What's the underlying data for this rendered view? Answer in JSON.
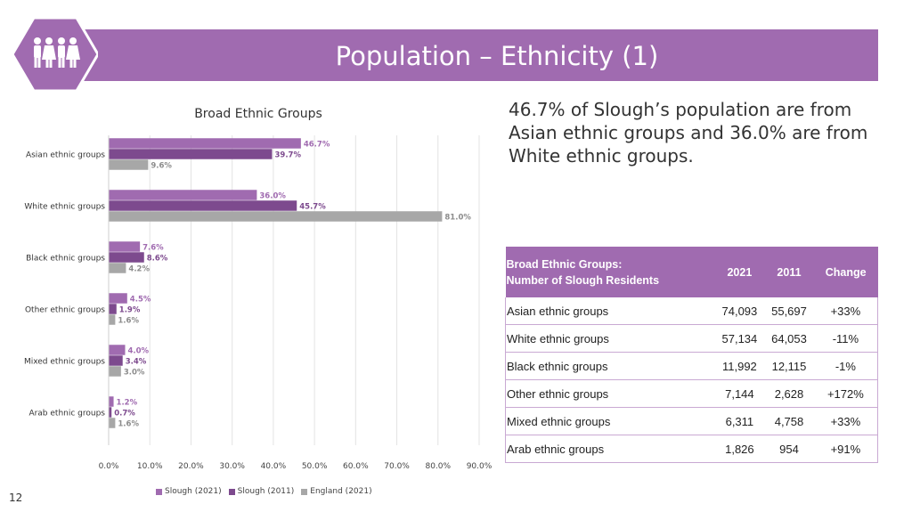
{
  "header": {
    "title": "Population – Ethnicity (1)"
  },
  "headline": "46.7% of Slough’s population are from Asian ethnic groups and 36.0% are from White ethnic groups.",
  "page_number": "12",
  "colors": {
    "banner": "#a06bb0",
    "slough2021": "#a06bb0",
    "slough2011": "#7d4a8e",
    "england2021": "#a7a7a7"
  },
  "chart_data": {
    "type": "bar",
    "orientation": "horizontal",
    "title": "Broad Ethnic Groups",
    "categories": [
      "Asian ethnic groups",
      "White ethnic groups",
      "Black ethnic groups",
      "Other ethnic groups",
      "Mixed ethnic groups",
      "Arab ethnic groups"
    ],
    "series": [
      {
        "name": "Slough (2021)",
        "values": [
          46.7,
          36.0,
          7.6,
          4.5,
          4.0,
          1.2
        ],
        "labels": [
          "46.7%",
          "36.0%",
          "7.6%",
          "4.5%",
          "4.0%",
          "1.2%"
        ]
      },
      {
        "name": "Slough (2011)",
        "values": [
          39.7,
          45.7,
          8.6,
          1.9,
          3.4,
          0.7
        ],
        "labels": [
          "39.7%",
          "45.7%",
          "8.6%",
          "1.9%",
          "3.4%",
          "0.7%"
        ]
      },
      {
        "name": "England (2021)",
        "values": [
          9.6,
          81.0,
          4.2,
          1.6,
          3.0,
          1.6
        ],
        "labels": [
          "9.6%",
          "81.0%",
          "4.2%",
          "1.6%",
          "3.0%",
          "1.6%"
        ]
      }
    ],
    "xlim": [
      0,
      90
    ],
    "x_ticks": [
      0,
      10,
      20,
      30,
      40,
      50,
      60,
      70,
      80,
      90
    ],
    "x_tick_labels": [
      "0.0%",
      "10.0%",
      "20.0%",
      "30.0%",
      "40.0%",
      "50.0%",
      "60.0%",
      "70.0%",
      "80.0%",
      "90.0%"
    ],
    "grid": true,
    "legend_position": "bottom"
  },
  "table": {
    "header": {
      "label_line1": "Broad Ethnic Groups:",
      "label_line2": "Number of Slough Residents",
      "col2021": "2021",
      "col2011": "2011",
      "change": "Change"
    },
    "rows": [
      {
        "group": "Asian ethnic groups",
        "y2021": "74,093",
        "y2011": "55,697",
        "change": "+33%"
      },
      {
        "group": "White ethnic groups",
        "y2021": "57,134",
        "y2011": "64,053",
        "change": "-11%"
      },
      {
        "group": "Black ethnic groups",
        "y2021": "11,992",
        "y2011": "12,115",
        "change": "-1%"
      },
      {
        "group": "Other ethnic groups",
        "y2021": "7,144",
        "y2011": "2,628",
        "change": "+172%"
      },
      {
        "group": "Mixed ethnic groups",
        "y2021": "6,311",
        "y2011": "4,758",
        "change": "+33%"
      },
      {
        "group": "Arab ethnic groups",
        "y2021": "1,826",
        "y2011": "954",
        "change": "+91%"
      }
    ]
  }
}
